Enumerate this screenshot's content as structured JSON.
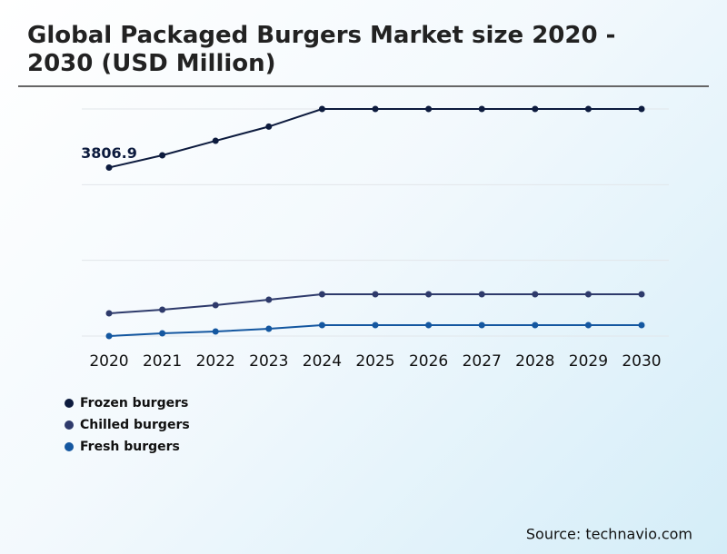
{
  "chart_data": {
    "type": "line",
    "title": "Global Packaged Burgers Market size 2020 - 2030 (USD Million)",
    "source": "Source: technavio.com",
    "x": [
      "2020",
      "2021",
      "2022",
      "2023",
      "2024",
      "2025",
      "2026",
      "2027",
      "2028",
      "2029",
      "2030"
    ],
    "series": [
      {
        "name": "Frozen burgers",
        "color": "#0d1b3e",
        "values": [
          3806.9,
          4083,
          4411,
          4732,
          5130,
          5130,
          5130,
          5130,
          5130,
          5130,
          5130
        ]
      },
      {
        "name": "Chilled burgers",
        "color": "#2e3a6b",
        "values": [
          513,
          595,
          698,
          821,
          944,
          944,
          944,
          944,
          944,
          944,
          944
        ]
      },
      {
        "name": "Fresh burgers",
        "color": "#1457a0",
        "values": [
          0,
          62,
          103,
          164,
          246,
          246,
          246,
          246,
          246,
          246,
          246
        ]
      }
    ],
    "ylim": [
      0,
      5130
    ],
    "grid": true
  }
}
